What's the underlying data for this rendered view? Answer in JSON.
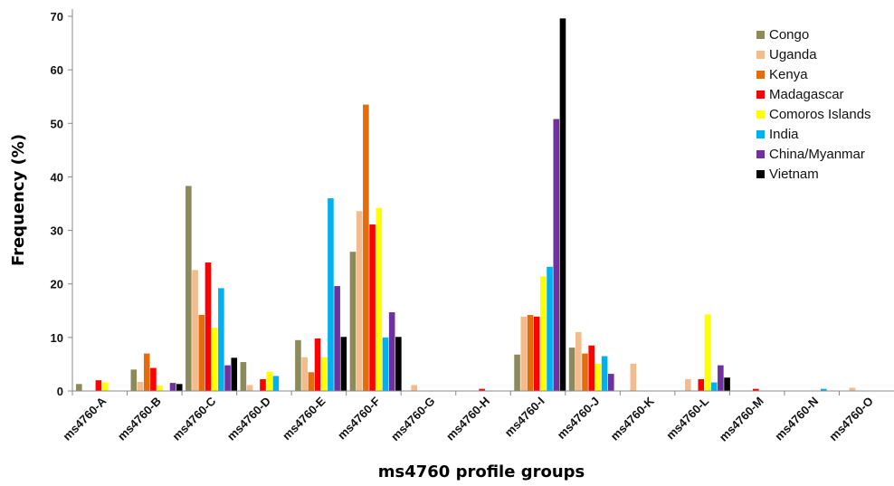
{
  "chart_data": {
    "type": "bar",
    "xlabel": "ms4760 profile groups",
    "ylabel": "Frequency (%)",
    "ylim": [
      0,
      70
    ],
    "yticks": [
      0,
      10,
      20,
      30,
      40,
      50,
      60,
      70
    ],
    "grid": false,
    "legend_position": "top-right",
    "categories": [
      "ms4760-A",
      "ms4760-B",
      "ms4760-C",
      "ms4760-D",
      "ms4760-E",
      "ms4760-F",
      "ms4760-G",
      "ms4760-H",
      "ms4760-I",
      "ms4760-J",
      "ms4760-K",
      "ms4760-L",
      "ms4760-M",
      "ms4760-N",
      "ms4760-O"
    ],
    "series": [
      {
        "name": "Congo",
        "color": "#8b8a5b",
        "values": [
          1.3,
          4.0,
          38.3,
          5.4,
          9.5,
          26.0,
          0,
          0,
          6.8,
          8.1,
          0,
          0,
          0,
          0,
          0
        ]
      },
      {
        "name": "Uganda",
        "color": "#f4bb8c",
        "values": [
          0,
          1.7,
          22.6,
          1.1,
          6.3,
          33.6,
          1.1,
          0,
          13.9,
          11.0,
          5.1,
          2.2,
          0,
          0,
          0.6
        ]
      },
      {
        "name": "Kenya",
        "color": "#e46c0a",
        "values": [
          0,
          7.0,
          14.2,
          0,
          3.5,
          53.5,
          0,
          0,
          14.2,
          7.0,
          0,
          0,
          0,
          0,
          0
        ]
      },
      {
        "name": "Madagascar",
        "color": "#ff0000",
        "values": [
          2.0,
          4.3,
          24.0,
          2.2,
          9.8,
          31.1,
          0,
          0.4,
          13.9,
          8.5,
          0,
          2.2,
          0.4,
          0,
          0
        ]
      },
      {
        "name": "Comoros Islands",
        "color": "#ffff00",
        "values": [
          1.6,
          1.0,
          11.8,
          3.6,
          6.3,
          34.2,
          0,
          0,
          21.4,
          5.1,
          0,
          14.3,
          0,
          0,
          0
        ]
      },
      {
        "name": "India",
        "color": "#00b0f0",
        "values": [
          0,
          0,
          19.2,
          2.8,
          36.0,
          10.0,
          0,
          0,
          23.2,
          6.5,
          0,
          1.6,
          0,
          0.4,
          0
        ]
      },
      {
        "name": "China/Myanmar",
        "color": "#7030a0",
        "values": [
          0,
          1.5,
          4.8,
          0,
          19.6,
          14.7,
          0,
          0,
          50.8,
          3.2,
          0,
          4.8,
          0,
          0,
          0
        ]
      },
      {
        "name": "Vietnam",
        "color": "#000000",
        "values": [
          0,
          1.3,
          6.2,
          0,
          10.1,
          10.1,
          0,
          0,
          69.6,
          0,
          0,
          2.5,
          0,
          0,
          0
        ]
      }
    ]
  }
}
